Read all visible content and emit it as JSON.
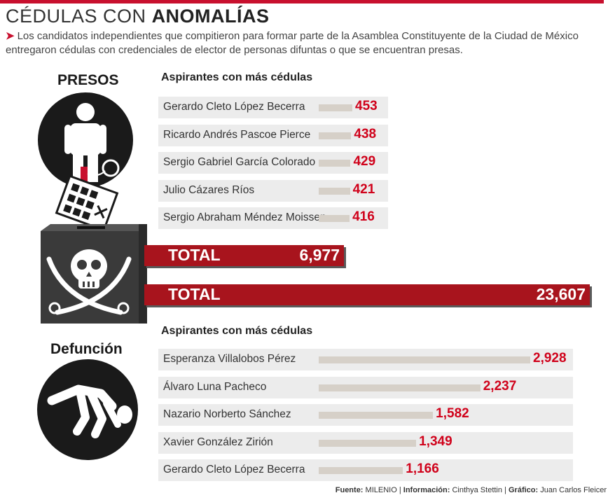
{
  "header": {
    "title_light": "CÉDULAS CON",
    "title_bold": "ANOMALÍAS",
    "subtitle": "Los candidatos independientes que compitieron para formar parte de la Asamblea Constituyente de la Ciudad de México entregaron cédulas con credenciales de elector de personas difuntas o que se encuentran presas."
  },
  "sections": {
    "presos_label": "PRESOS",
    "defuncion_label": "Defunción",
    "heading_presos": "Aspirantes con más cédulas",
    "heading_defuncion": "Aspirantes con más cédulas"
  },
  "totals": {
    "presos": {
      "label": "TOTAL",
      "value": "6,977"
    },
    "defuncion": {
      "label": "TOTAL",
      "value": "23,607"
    }
  },
  "footer": {
    "fuente_label": "Fuente:",
    "fuente": "MILENIO",
    "info_label": "Información:",
    "info": "Cinthya Stettin",
    "grafico_label": "Gráfico:",
    "grafico": "Juan Carlos Fleicer"
  },
  "colors": {
    "accent": "#c8102e",
    "total_bar": "#a8141d",
    "value_text": "#d0021b"
  },
  "icons": [
    "prisoner-icon",
    "ballot-icon",
    "ballot-box-icon",
    "skull-crossbones-icon",
    "dead-body-icon"
  ],
  "chart_data": [
    {
      "type": "bar",
      "title": "Aspirantes con más cédulas",
      "categories": [
        "Gerardo Cleto López Becerra",
        "Ricardo Andrés Pascoe Pierce",
        "Sergio Gabriel García Colorado",
        "Julio Cázares Ríos",
        "Sergio Abraham Méndez Moissen"
      ],
      "values": [
        453,
        438,
        429,
        421,
        416
      ],
      "labels": [
        "453",
        "438",
        "429",
        "421",
        "416"
      ]
    },
    {
      "type": "bar",
      "title": "Aspirantes con más cédulas",
      "categories": [
        "Esperanza Villalobos Pérez",
        "Álvaro Luna Pacheco",
        "Nazario Norberto Sánchez",
        "Xavier González Zirión",
        "Gerardo Cleto López Becerra"
      ],
      "values": [
        2928,
        2237,
        1582,
        1349,
        1166
      ],
      "labels": [
        "2,928",
        "2,237",
        "1,582",
        "1,349",
        "1,166"
      ]
    }
  ]
}
